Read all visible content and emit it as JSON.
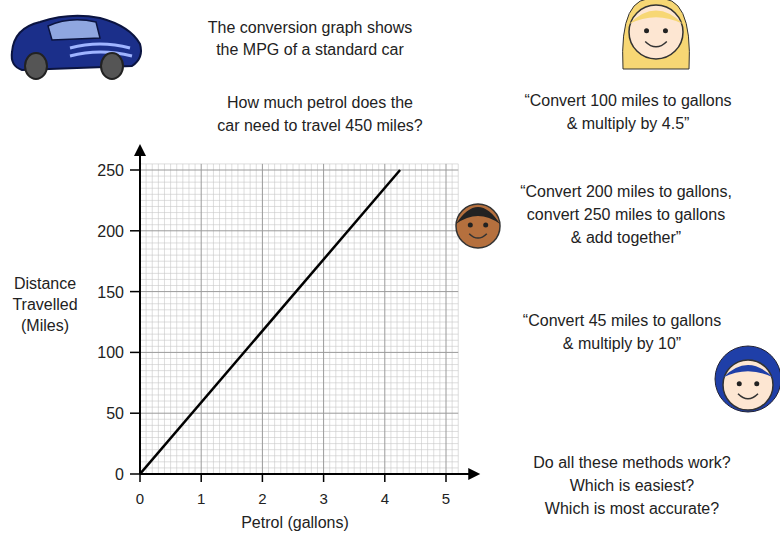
{
  "chart_data": {
    "type": "line",
    "title": [
      "The conversion graph shows",
      "the MPG of a standard car"
    ],
    "x_label": "Petrol (gallons)",
    "y_label": [
      "Distance",
      "Travelled",
      "(Miles)"
    ],
    "x": [
      0,
      4.25
    ],
    "values": [
      0,
      250
    ],
    "color": "#000000",
    "xlim": [
      0,
      5.2
    ],
    "ylim": [
      0,
      255
    ],
    "xticks": [
      0,
      1,
      2,
      3,
      4,
      5
    ],
    "yticks": [
      0,
      50,
      100,
      150,
      200,
      250
    ],
    "grid": true,
    "annotations": [
      [
        "How much petrol does the",
        "car need to travel 450 miles?"
      ],
      [
        "“Convert 100 miles to gallons",
        "& multiply by 4.5”"
      ],
      [
        "“Convert 200 miles to gallons,",
        "convert 250 miles to gallons",
        "& add together”"
      ],
      [
        "“Convert 45 miles to gallons",
        "& multiply by 10”"
      ],
      [
        "Do all these methods work?",
        "Which is easiest?",
        "Which is most accurate?"
      ]
    ]
  }
}
